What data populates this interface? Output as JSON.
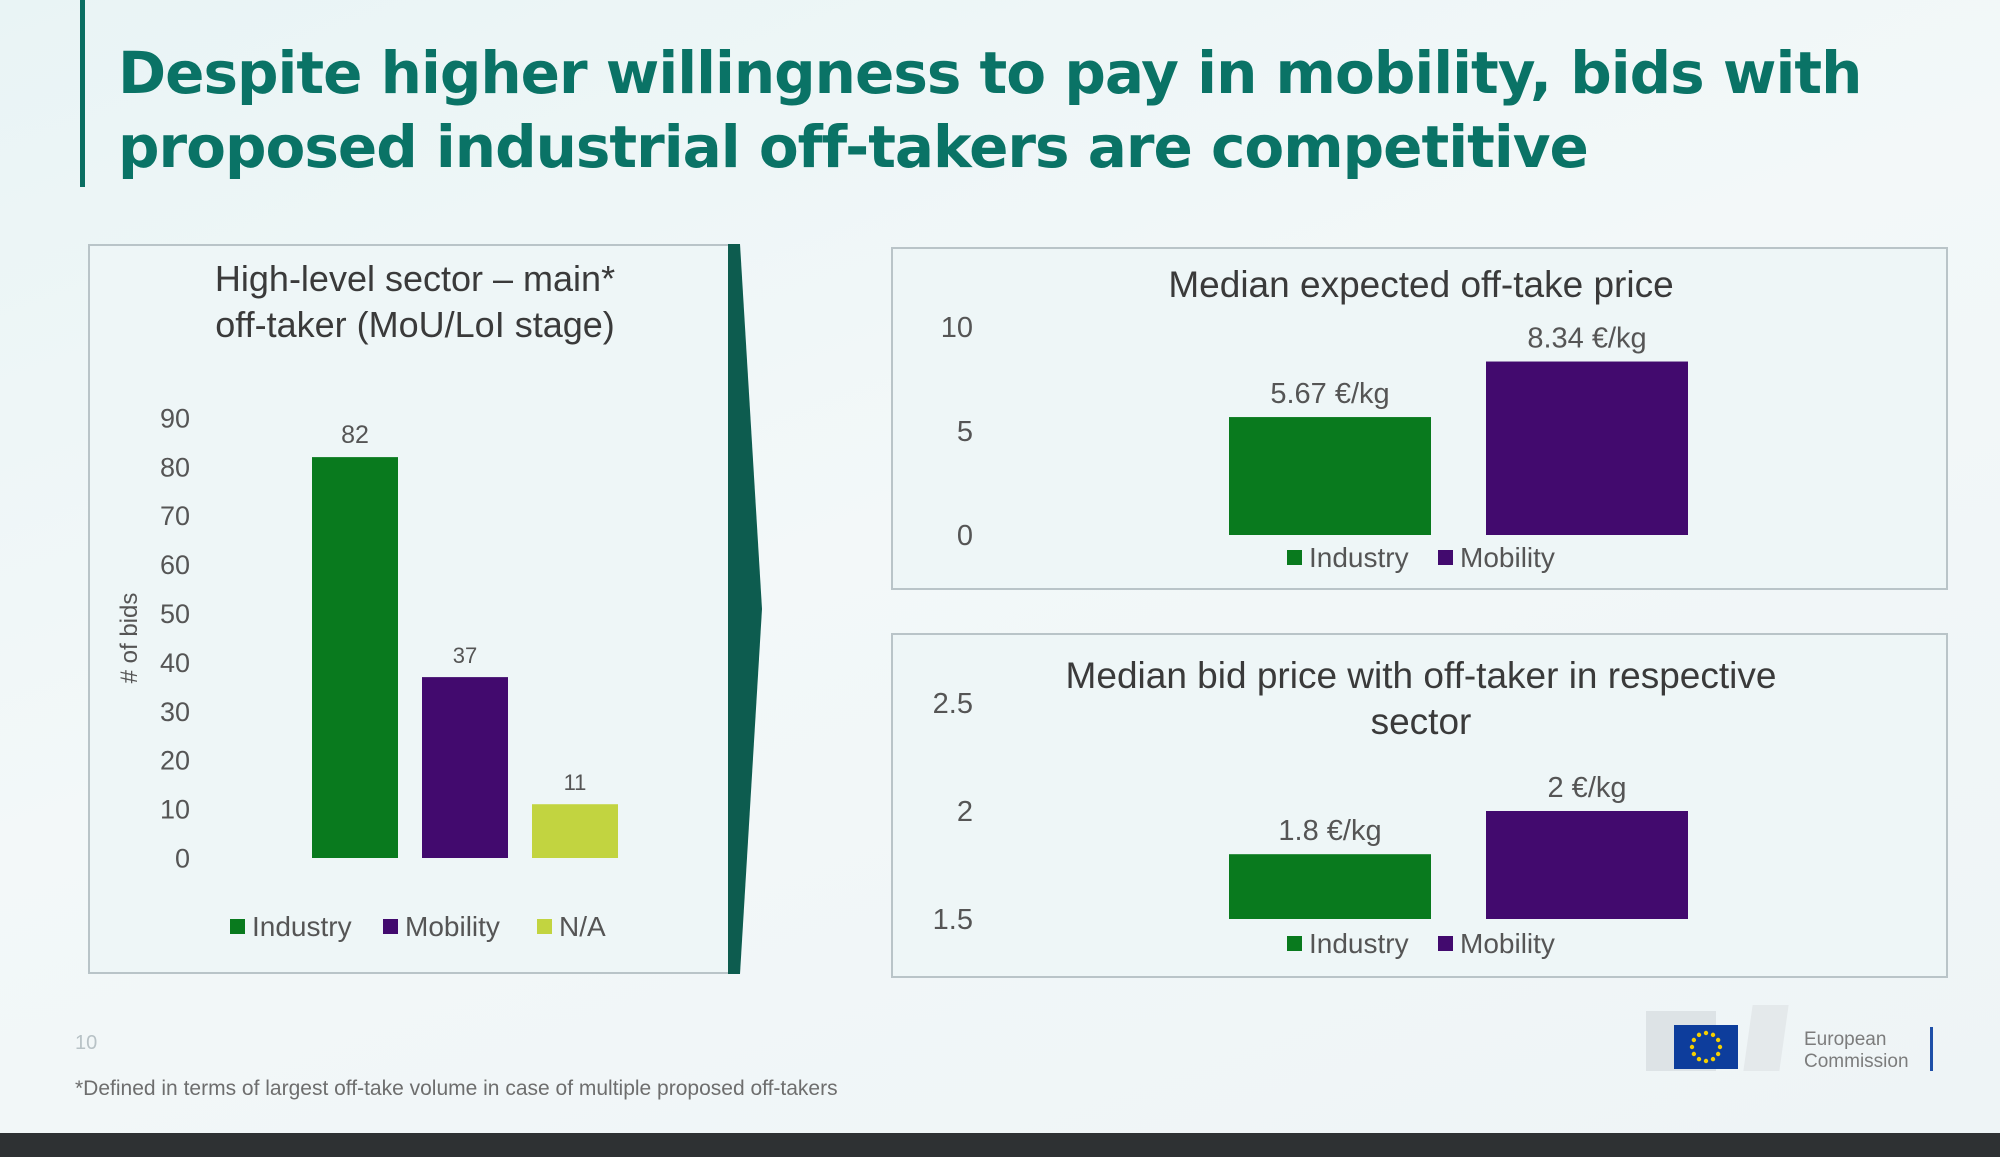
{
  "slide": {
    "title": "Despite higher willingness to pay in mobility, bids with proposed industrial off-takers are competitive",
    "page_number": "10",
    "footnote": "*Defined in terms of largest off-take volume in case of multiple proposed off-takers",
    "logo_text": [
      "European",
      "Commission"
    ]
  },
  "colors": {
    "title": "#0a7366",
    "Industry": "#097a1e",
    "Mobility": "#420a6e",
    "N/A": "#c2d440",
    "arrow": "#0d5c4f"
  },
  "chart_data": [
    {
      "id": "sector",
      "type": "bar",
      "title": [
        "High-level sector – main*",
        "off-taker (MoU/LoI stage)"
      ],
      "ylabel": "# of bids",
      "categories": [
        "Industry",
        "Mobility",
        "N/A"
      ],
      "values": [
        82,
        37,
        11
      ],
      "labels": [
        "82",
        "37",
        "11"
      ],
      "yticks": [
        0,
        10,
        20,
        30,
        40,
        50,
        60,
        70,
        80,
        90
      ],
      "ylim": [
        0,
        90
      ],
      "legend": [
        "Industry",
        "Mobility",
        "N/A"
      ]
    },
    {
      "id": "offtake",
      "type": "bar",
      "title": [
        "Median expected off-take price"
      ],
      "categories": [
        "Industry",
        "Mobility"
      ],
      "values": [
        5.67,
        8.34
      ],
      "labels": [
        "5.67 €/kg",
        "8.34 €/kg"
      ],
      "yticks": [
        0,
        5,
        10
      ],
      "ylim": [
        0,
        10
      ],
      "legend": [
        "Industry",
        "Mobility"
      ]
    },
    {
      "id": "bid",
      "type": "bar",
      "title": [
        "Median bid price with off-taker in respective",
        "sector"
      ],
      "categories": [
        "Industry",
        "Mobility"
      ],
      "values": [
        1.8,
        2
      ],
      "labels": [
        "1.8 €/kg",
        "2 €/kg"
      ],
      "yticks": [
        1.5,
        2,
        2.5
      ],
      "ylim": [
        1.5,
        2.5
      ],
      "legend": [
        "Industry",
        "Mobility"
      ]
    }
  ]
}
